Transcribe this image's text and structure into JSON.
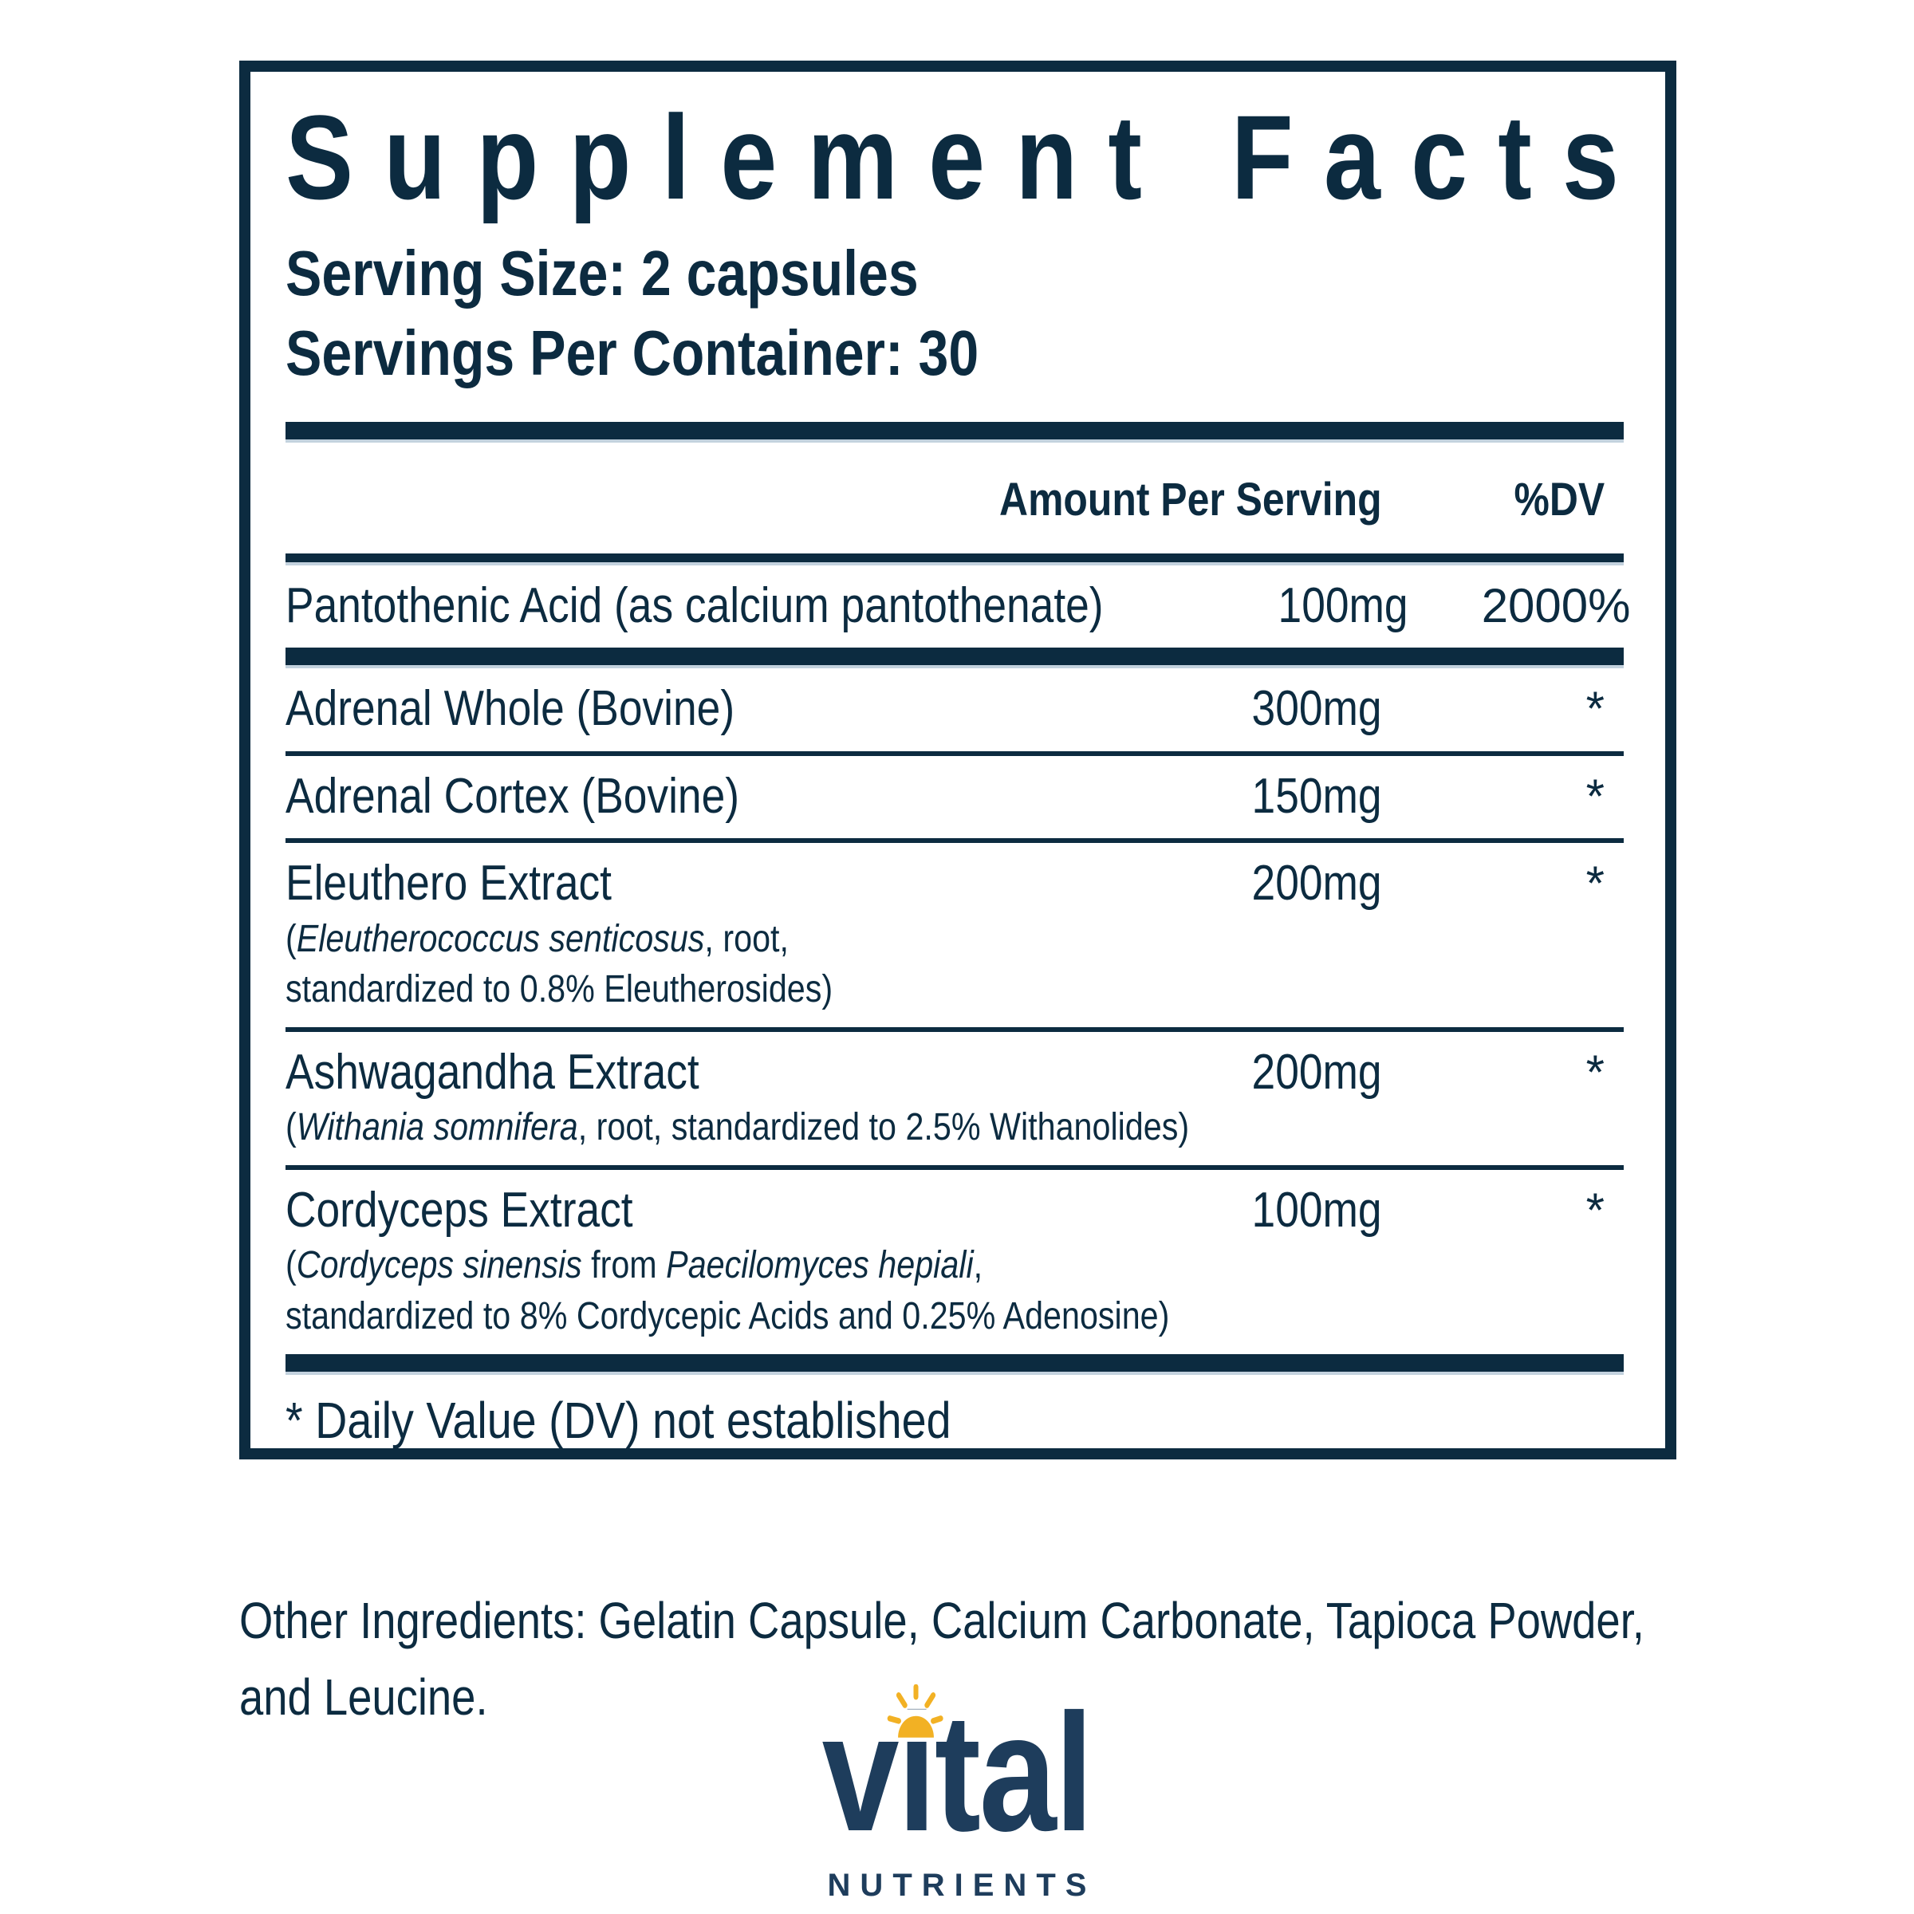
{
  "colors": {
    "panel_navy": "#0c2b40",
    "logo_navy": "#1e3d5c",
    "sun_gold": "#f2b124",
    "bar_shadow": "#c3d2de",
    "background": "#ffffff"
  },
  "panel": {
    "title": "Supplement Facts",
    "serving_size": "Serving Size: 2 capsules",
    "servings_per_container": "Servings Per Container: 30",
    "columns": {
      "amount_header": "Amount Per Serving",
      "dv_header": "%DV"
    },
    "rows": [
      {
        "name": "Pantothenic Acid (as calcium pantothenate)",
        "amount": "100mg",
        "dv": "2000%",
        "divider_after": "thick",
        "details": []
      },
      {
        "name": "Adrenal Whole (Bovine)",
        "amount": "300mg",
        "dv": "*",
        "divider_after": "thin",
        "details": []
      },
      {
        "name": "Adrenal Cortex (Bovine)",
        "amount": "150mg",
        "dv": "*",
        "divider_after": "thin",
        "details": []
      },
      {
        "name": "Eleuthero Extract",
        "amount": "200mg",
        "dv": "*",
        "divider_after": "thin",
        "details": [
          {
            "segments": [
              {
                "text": "(",
                "italic": false
              },
              {
                "text": "Eleutherococcus senticosus",
                "italic": true
              },
              {
                "text": ", root,",
                "italic": false
              }
            ]
          },
          {
            "segments": [
              {
                "text": "standardized to 0.8% Eleutherosides)",
                "italic": false
              }
            ]
          }
        ]
      },
      {
        "name": "Ashwagandha Extract",
        "amount": "200mg",
        "dv": "*",
        "divider_after": "thin",
        "details": [
          {
            "segments": [
              {
                "text": "(",
                "italic": false
              },
              {
                "text": "Withania somnifera",
                "italic": true
              },
              {
                "text": ", root, standardized to 2.5% Withanolides)",
                "italic": false
              }
            ]
          }
        ]
      },
      {
        "name": "Cordyceps Extract",
        "amount": "100mg",
        "dv": "*",
        "divider_after": "thick",
        "details": [
          {
            "segments": [
              {
                "text": "(",
                "italic": false
              },
              {
                "text": "Cordyceps sinensis",
                "italic": true
              },
              {
                "text": " from ",
                "italic": false
              },
              {
                "text": "Paecilomyces hepiali",
                "italic": true
              },
              {
                "text": ",",
                "italic": false
              }
            ]
          },
          {
            "segments": [
              {
                "text": "standardized to 8% Cordycepic Acids and 0.25% Adenosine)",
                "italic": false
              }
            ]
          }
        ]
      }
    ],
    "footnote": "* Daily Value (DV) not established"
  },
  "other_ingredients": {
    "line1": "Other Ingredients: Gelatin Capsule, Calcium Carbonate, Tapioca Powder,",
    "line2": "and Leucine."
  },
  "logo": {
    "word_part1": "v",
    "word_part2": "i",
    "word_part3": "tal",
    "subtext": "NUTRIENTS",
    "sun_icon": "sun-rays"
  }
}
